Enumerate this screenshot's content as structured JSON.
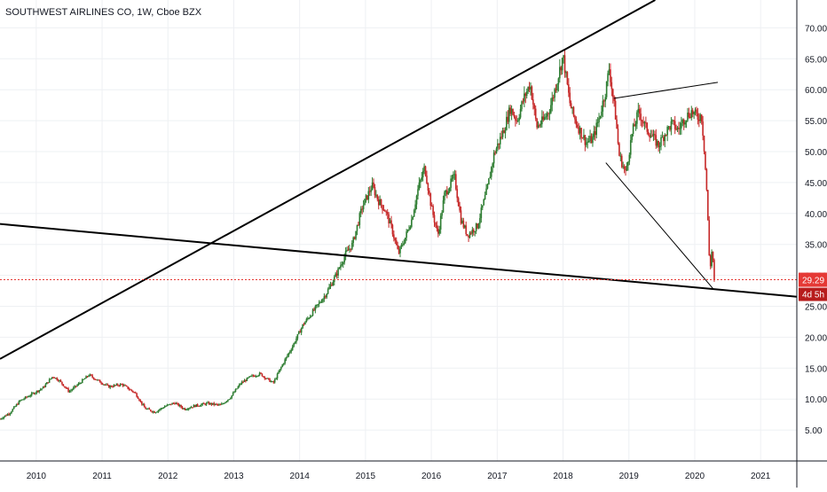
{
  "chart_data": {
    "type": "candlestick",
    "title": "SOUTHWEST AIRLINES CO, 1W, Cboe BZX",
    "x_ticks": [
      "2010",
      "2011",
      "2012",
      "2013",
      "2014",
      "2015",
      "2016",
      "2017",
      "2018",
      "2019",
      "2020",
      "2021"
    ],
    "y_ticks": [
      "5.00",
      "10.00",
      "15.00",
      "20.00",
      "25.00",
      "30.00",
      "35.00",
      "40.00",
      "45.00",
      "50.00",
      "55.00",
      "60.00",
      "65.00",
      "70.00"
    ],
    "xlim": [
      2009.45,
      2021.55
    ],
    "ylim": [
      0,
      74.5
    ],
    "last_price": {
      "label": "29.29",
      "value": 29.29
    },
    "countdown": "4d 5h",
    "colors": {
      "up": "#2e7d32",
      "down": "#c62828",
      "price_line": "#e53935",
      "trendline": "#000000"
    },
    "price_path": [
      [
        2009.45,
        6.8
      ],
      [
        2009.6,
        7.8
      ],
      [
        2009.75,
        9.7
      ],
      [
        2009.9,
        10.6
      ],
      [
        2010.1,
        11.8
      ],
      [
        2010.25,
        13.7
      ],
      [
        2010.35,
        13.0
      ],
      [
        2010.5,
        11.2
      ],
      [
        2010.65,
        12.5
      ],
      [
        2010.8,
        13.9
      ],
      [
        2010.95,
        12.9
      ],
      [
        2011.1,
        12.0
      ],
      [
        2011.3,
        12.4
      ],
      [
        2011.5,
        11.0
      ],
      [
        2011.65,
        8.5
      ],
      [
        2011.8,
        7.9
      ],
      [
        2011.95,
        8.8
      ],
      [
        2012.1,
        9.4
      ],
      [
        2012.25,
        8.4
      ],
      [
        2012.4,
        8.9
      ],
      [
        2012.6,
        9.3
      ],
      [
        2012.8,
        9.0
      ],
      [
        2012.95,
        10.3
      ],
      [
        2013.1,
        12.5
      ],
      [
        2013.25,
        13.6
      ],
      [
        2013.4,
        14.1
      ],
      [
        2013.5,
        13.3
      ],
      [
        2013.6,
        12.6
      ],
      [
        2013.75,
        15.8
      ],
      [
        2013.9,
        18.7
      ],
      [
        2014.05,
        22.0
      ],
      [
        2014.25,
        24.8
      ],
      [
        2014.4,
        27.0
      ],
      [
        2014.55,
        30.0
      ],
      [
        2014.7,
        33.5
      ],
      [
        2014.8,
        35.0
      ],
      [
        2014.95,
        41.0
      ],
      [
        2015.1,
        44.5
      ],
      [
        2015.2,
        42.0
      ],
      [
        2015.3,
        40.5
      ],
      [
        2015.4,
        37.5
      ],
      [
        2015.5,
        33.5
      ],
      [
        2015.6,
        36.0
      ],
      [
        2015.7,
        39.0
      ],
      [
        2015.8,
        44.0
      ],
      [
        2015.9,
        47.5
      ],
      [
        2016.0,
        41.0
      ],
      [
        2016.1,
        36.5
      ],
      [
        2016.2,
        43.0
      ],
      [
        2016.35,
        46.0
      ],
      [
        2016.45,
        39.0
      ],
      [
        2016.55,
        36.5
      ],
      [
        2016.7,
        38.0
      ],
      [
        2016.85,
        44.0
      ],
      [
        2016.95,
        49.5
      ],
      [
        2017.1,
        53.5
      ],
      [
        2017.2,
        57.0
      ],
      [
        2017.3,
        55.0
      ],
      [
        2017.4,
        58.5
      ],
      [
        2017.5,
        61.0
      ],
      [
        2017.6,
        54.0
      ],
      [
        2017.7,
        55.0
      ],
      [
        2017.8,
        57.0
      ],
      [
        2017.9,
        61.0
      ],
      [
        2018.0,
        65.5
      ],
      [
        2018.1,
        58.0
      ],
      [
        2018.15,
        56.0
      ],
      [
        2018.25,
        53.5
      ],
      [
        2018.35,
        51.5
      ],
      [
        2018.45,
        52.0
      ],
      [
        2018.55,
        55.5
      ],
      [
        2018.65,
        60.0
      ],
      [
        2018.7,
        63.5
      ],
      [
        2018.8,
        55.5
      ],
      [
        2018.85,
        49.5
      ],
      [
        2018.95,
        46.5
      ],
      [
        2019.05,
        53.0
      ],
      [
        2019.15,
        56.5
      ],
      [
        2019.25,
        54.0
      ],
      [
        2019.35,
        52.5
      ],
      [
        2019.45,
        51.0
      ],
      [
        2019.55,
        53.0
      ],
      [
        2019.65,
        54.5
      ],
      [
        2019.75,
        53.5
      ],
      [
        2019.85,
        55.5
      ],
      [
        2019.95,
        56.5
      ],
      [
        2020.05,
        55.5
      ],
      [
        2020.1,
        56.0
      ],
      [
        2020.14,
        51.0
      ],
      [
        2020.18,
        44.0
      ],
      [
        2020.21,
        36.0
      ],
      [
        2020.23,
        30.0
      ],
      [
        2020.25,
        34.0
      ],
      [
        2020.27,
        33.5
      ],
      [
        2020.29,
        30.5
      ],
      [
        2020.31,
        29.29
      ]
    ]
  }
}
